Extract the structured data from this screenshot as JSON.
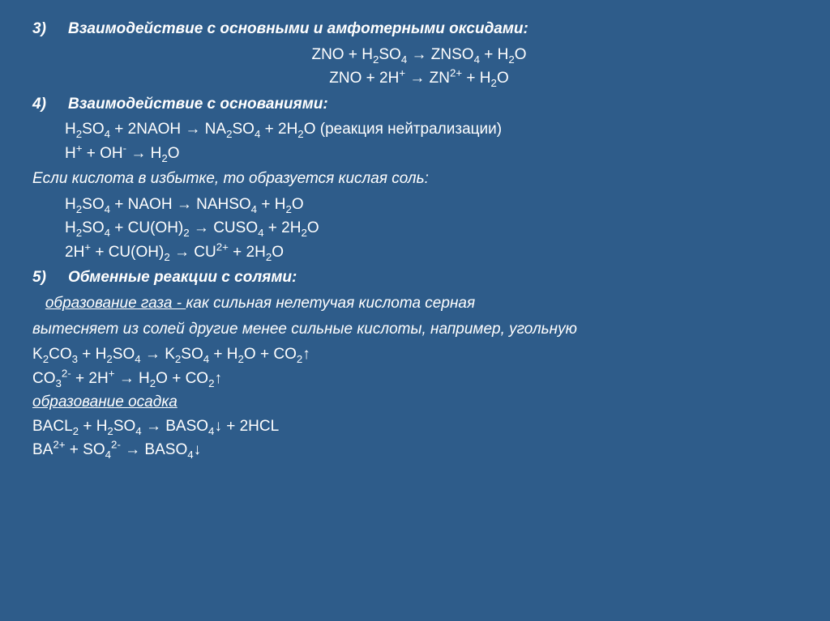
{
  "background_color": "#2e5c8a",
  "text_color": "#ffffff",
  "font_family": "Arial, sans-serif",
  "font_size_pt": 19,
  "section3": {
    "title": "Взаимодействие с основными и амфотерными  оксидами:",
    "num": "3)",
    "eq1": "ZNO + H₂SO₄ → ZNSO₄ + H₂O",
    "eq2": "ZNO + 2H⁺ → ZN²⁺ + H₂O"
  },
  "section4": {
    "title": "Взаимодействие с основаниями:",
    "num": "4)",
    "eq1_a": "H₂SO₄ + 2NAOH → NA₂SO₄ + 2H₂O ",
    "eq1_b": "(реакция нейтрализации)",
    "eq2": "H⁺ + OH⁻ → H₂O",
    "note": "Если кислота в избытке, то образуется кислая соль:",
    "eq3": "H₂SO₄ + NAOH → NAHSO₄ + H₂O",
    "eq4": "H₂SO₄ + CU(OH)₂ → CUSO₄ + 2H₂O",
    "eq5": "2H⁺ + CU(OH)₂ → CU²⁺ + 2H₂O"
  },
  "section5": {
    "title": "Обменные реакции с солями:",
    "num": "5)",
    "sub1": "образование газа - ",
    "sub1_tail": " как сильная нелетучая кислота серная",
    "sub1_line2": "вытесняет из солей другие менее сильные кислоты, например, угольную",
    "eq1": "K₂CO₃ + H₂SO₄ → K₂SO₄ + H₂O + CO₂↑",
    "eq2": "CO₃²⁻ + 2H⁺ → H₂O + CO₂↑",
    "sub2": "образование осадка",
    "eq3": "BACL₂ + H₂SO₄ → BASO₄↓ + 2HCL",
    "eq4": "BA²⁺ + SO₄²⁻ → BASO₄↓"
  }
}
